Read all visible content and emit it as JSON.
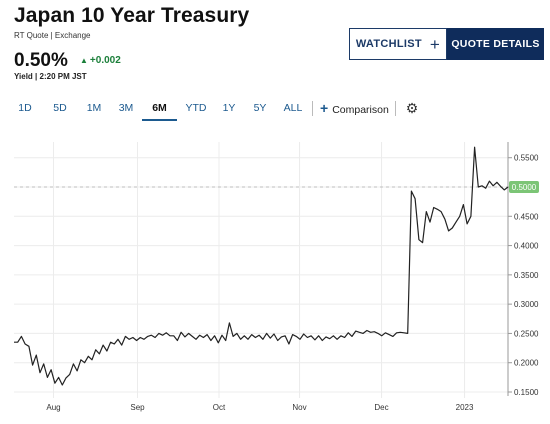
{
  "header": {
    "title": "Japan 10 Year Treasury",
    "subtitle": "RT Quote | Exchange",
    "price": "0.50%",
    "change": "+0.002",
    "yield_time": "Yield | 2:20 PM JST"
  },
  "buttons": {
    "watchlist": "WATCHLIST",
    "watchlist_plus": "+",
    "quote_details": "QUOTE DETAILS"
  },
  "tabs": [
    {
      "label": "1D"
    },
    {
      "label": "5D"
    },
    {
      "label": "1M"
    },
    {
      "label": "3M"
    },
    {
      "label": "6M",
      "active": true
    },
    {
      "label": "YTD"
    },
    {
      "label": "1Y"
    },
    {
      "label": "5Y"
    },
    {
      "label": "ALL"
    }
  ],
  "toolbar": {
    "comparison_label": "Comparison",
    "settings_icon": "gear-icon"
  },
  "colors": {
    "accent": "#1c5a8f",
    "navy": "#0f2c5b",
    "positive": "#1b7f3a",
    "price_tag": "#7cc576",
    "line": "#222222"
  },
  "chart_data": {
    "type": "line",
    "x_tick_labels": [
      "Aug",
      "Sep",
      "Oct",
      "Nov",
      "Dec",
      "2023"
    ],
    "y_tick_labels": [
      "0.5500",
      "0.5000",
      "0.4500",
      "0.4000",
      "0.3500",
      "0.3000",
      "0.2500",
      "0.2000",
      "0.1500"
    ],
    "y_ticks": [
      0.55,
      0.5,
      0.45,
      0.4,
      0.35,
      0.3,
      0.25,
      0.2,
      0.15
    ],
    "ylim": [
      0.15,
      0.57
    ],
    "current_value_label": "0.5000",
    "current_value": 0.5,
    "grid": true,
    "series": [
      {
        "values": [
          0.235,
          0.235,
          0.245,
          0.232,
          0.228,
          0.196,
          0.213,
          0.183,
          0.198,
          0.175,
          0.188,
          0.165,
          0.175,
          0.162,
          0.174,
          0.18,
          0.198,
          0.186,
          0.205,
          0.2,
          0.211,
          0.205,
          0.222,
          0.215,
          0.23,
          0.22,
          0.235,
          0.232,
          0.24,
          0.23,
          0.245,
          0.24,
          0.243,
          0.238,
          0.243,
          0.24,
          0.245,
          0.247,
          0.243,
          0.25,
          0.247,
          0.251,
          0.246,
          0.246,
          0.238,
          0.252,
          0.244,
          0.25,
          0.245,
          0.24,
          0.247,
          0.243,
          0.248,
          0.238,
          0.246,
          0.234,
          0.247,
          0.238,
          0.268,
          0.245,
          0.25,
          0.24,
          0.246,
          0.24,
          0.248,
          0.243,
          0.247,
          0.24,
          0.25,
          0.242,
          0.249,
          0.238,
          0.244,
          0.246,
          0.232,
          0.248,
          0.245,
          0.24,
          0.249,
          0.243,
          0.246,
          0.239,
          0.246,
          0.238,
          0.244,
          0.241,
          0.246,
          0.24,
          0.246,
          0.243,
          0.251,
          0.245,
          0.254,
          0.252,
          0.25,
          0.255,
          0.252,
          0.253,
          0.25,
          0.246,
          0.251,
          0.248,
          0.245,
          0.251,
          0.252,
          0.251,
          0.25,
          0.493,
          0.48,
          0.41,
          0.405,
          0.458,
          0.44,
          0.465,
          0.462,
          0.458,
          0.445,
          0.425,
          0.43,
          0.44,
          0.45,
          0.47,
          0.437,
          0.45,
          0.568,
          0.5,
          0.502,
          0.498,
          0.51,
          0.502,
          0.508,
          0.501,
          0.495,
          0.5
        ]
      }
    ]
  }
}
